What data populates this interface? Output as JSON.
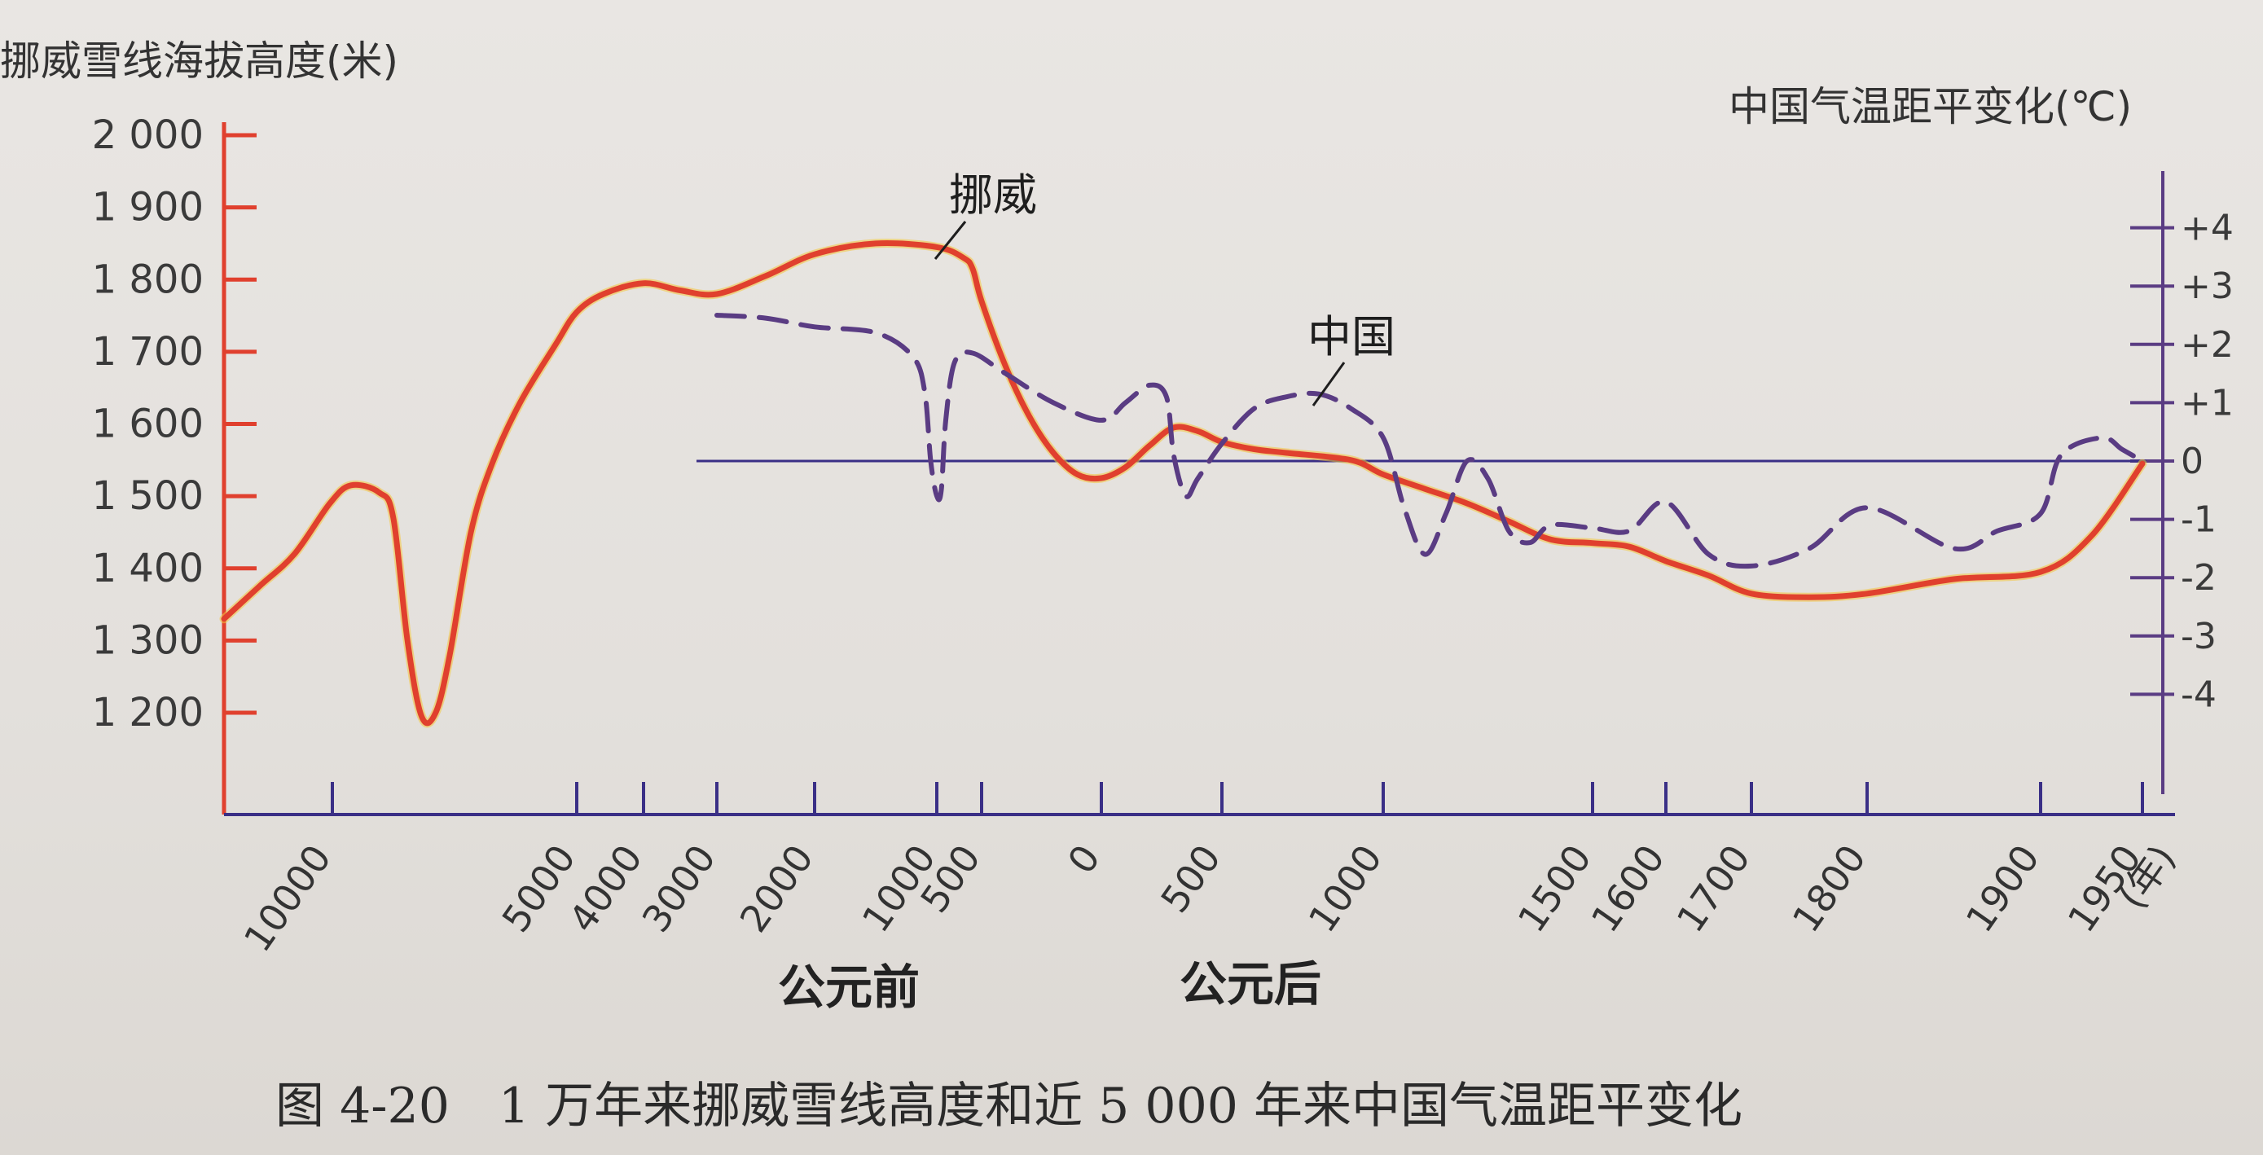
{
  "chart_data": {
    "type": "line",
    "title": "",
    "caption": "图 4-20　1 万年来挪威雪线高度和近 5 000 年来中国气温距平变化",
    "ylabel_left": "挪威雪线海拔高度(米)",
    "ylabel_right": "中国气温距平变化(℃)",
    "xlabel_unit": "(年)",
    "era_labels": {
      "bc": "公元前",
      "ad": "公元后"
    },
    "y_left": {
      "range": [
        1100,
        2050
      ],
      "ticks": [
        2000,
        1900,
        1800,
        1700,
        1600,
        1500,
        1400,
        1300,
        1200
      ],
      "tick_labels": [
        "2 000",
        "1 900",
        "1 800",
        "1 700",
        "1 600",
        "1 500",
        "1 400",
        "1 300",
        "1 200"
      ]
    },
    "y_right": {
      "range": [
        -5,
        5
      ],
      "ticks": [
        4,
        3,
        2,
        1,
        0,
        -1,
        -2,
        -3,
        -4
      ],
      "tick_labels": [
        "+4",
        "+3",
        "+2",
        "+1",
        "0",
        "-1",
        "-2",
        "-3",
        "-4"
      ]
    },
    "x_ticks": [
      {
        "label": "10000"
      },
      {
        "label": "5000"
      },
      {
        "label": "4000"
      },
      {
        "label": "3000"
      },
      {
        "label": "2000"
      },
      {
        "label": "1000"
      },
      {
        "label": "500"
      },
      {
        "label": "0"
      },
      {
        "label": "500"
      },
      {
        "label": "1000"
      },
      {
        "label": "1500"
      },
      {
        "label": "1600"
      },
      {
        "label": "1700"
      },
      {
        "label": "1800"
      },
      {
        "label": "1900"
      },
      {
        "label": "1950"
      }
    ],
    "series": [
      {
        "name": "挪威",
        "axis": "left",
        "color": "#e0402e",
        "style": "solid",
        "points": [
          [
            -10000,
            1330
          ],
          [
            -9500,
            1375
          ],
          [
            -9000,
            1420
          ],
          [
            -8500,
            1490
          ],
          [
            -8200,
            1515
          ],
          [
            -7800,
            1505
          ],
          [
            -7600,
            1470
          ],
          [
            -7400,
            1300
          ],
          [
            -7200,
            1195
          ],
          [
            -7000,
            1200
          ],
          [
            -6800,
            1280
          ],
          [
            -6500,
            1450
          ],
          [
            -6200,
            1545
          ],
          [
            -5800,
            1630
          ],
          [
            -5300,
            1710
          ],
          [
            -5000,
            1755
          ],
          [
            -4600,
            1780
          ],
          [
            -4000,
            1795
          ],
          [
            -3500,
            1785
          ],
          [
            -3000,
            1780
          ],
          [
            -2500,
            1805
          ],
          [
            -2000,
            1835
          ],
          [
            -1500,
            1850
          ],
          [
            -1000,
            1845
          ],
          [
            -700,
            1830
          ],
          [
            -600,
            1815
          ],
          [
            -500,
            1770
          ],
          [
            -400,
            1680
          ],
          [
            -300,
            1610
          ],
          [
            -200,
            1560
          ],
          [
            -100,
            1530
          ],
          [
            0,
            1525
          ],
          [
            100,
            1540
          ],
          [
            200,
            1570
          ],
          [
            300,
            1595
          ],
          [
            400,
            1590
          ],
          [
            500,
            1575
          ],
          [
            600,
            1565
          ],
          [
            700,
            1560
          ],
          [
            900,
            1550
          ],
          [
            1000,
            1530
          ],
          [
            1100,
            1510
          ],
          [
            1200,
            1490
          ],
          [
            1300,
            1465
          ],
          [
            1400,
            1440
          ],
          [
            1500,
            1435
          ],
          [
            1550,
            1430
          ],
          [
            1600,
            1410
          ],
          [
            1650,
            1390
          ],
          [
            1700,
            1365
          ],
          [
            1750,
            1360
          ],
          [
            1800,
            1365
          ],
          [
            1850,
            1385
          ],
          [
            1900,
            1395
          ],
          [
            1925,
            1445
          ],
          [
            1950,
            1545
          ]
        ]
      },
      {
        "name": "中国",
        "axis": "right",
        "color": "#5a3c83",
        "style": "dashed",
        "points": [
          [
            -3000,
            2.5
          ],
          [
            -2500,
            2.45
          ],
          [
            -2000,
            2.3
          ],
          [
            -1500,
            2.2
          ],
          [
            -1200,
            1.8
          ],
          [
            -1100,
            1.2
          ],
          [
            -1050,
            0.0
          ],
          [
            -1000,
            -0.6
          ],
          [
            -950,
            -0.5
          ],
          [
            -900,
            0.7
          ],
          [
            -800,
            1.7
          ],
          [
            -600,
            1.85
          ],
          [
            -400,
            1.5
          ],
          [
            -200,
            1.0
          ],
          [
            0,
            0.7
          ],
          [
            100,
            1.0
          ],
          [
            200,
            1.3
          ],
          [
            270,
            1.1
          ],
          [
            300,
            0.1
          ],
          [
            350,
            -0.6
          ],
          [
            400,
            -0.3
          ],
          [
            500,
            0.3
          ],
          [
            600,
            0.9
          ],
          [
            700,
            1.1
          ],
          [
            800,
            1.15
          ],
          [
            900,
            0.9
          ],
          [
            1000,
            0.4
          ],
          [
            1050,
            -0.8
          ],
          [
            1100,
            -1.6
          ],
          [
            1150,
            -0.9
          ],
          [
            1200,
            0.0
          ],
          [
            1250,
            -0.3
          ],
          [
            1300,
            -1.2
          ],
          [
            1350,
            -1.4
          ],
          [
            1400,
            -1.1
          ],
          [
            1500,
            -1.15
          ],
          [
            1550,
            -1.2
          ],
          [
            1600,
            -0.7
          ],
          [
            1650,
            -1.6
          ],
          [
            1700,
            -1.8
          ],
          [
            1750,
            -1.5
          ],
          [
            1800,
            -0.8
          ],
          [
            1850,
            -1.5
          ],
          [
            1875,
            -1.2
          ],
          [
            1900,
            -0.9
          ],
          [
            1910,
            0.1
          ],
          [
            1930,
            0.4
          ],
          [
            1940,
            0.2
          ],
          [
            1950,
            0.0
          ]
        ]
      }
    ],
    "reference_line": {
      "axis": "right",
      "value": 0,
      "x_range": [
        -3000,
        1950
      ],
      "color": "#3a2f86"
    },
    "legend": "inline labels on curves",
    "grid": false
  }
}
